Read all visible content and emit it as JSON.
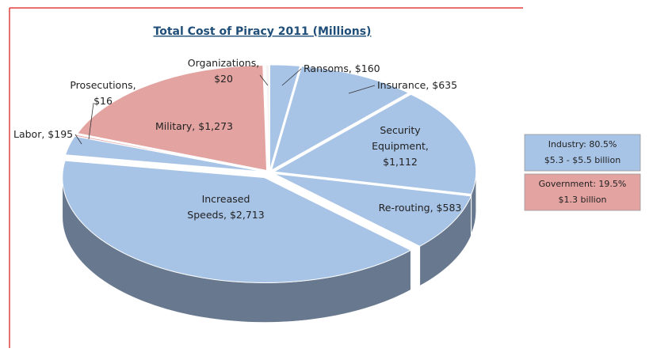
{
  "chart_data": {
    "type": "pie",
    "title": "Total Cost of Piracy 2011 (Millions)",
    "values": [
      160,
      635,
      1112,
      583,
      2713,
      195,
      16,
      1273,
      20
    ],
    "value_labels": [
      "Ransoms, $160",
      "Insurance, $635",
      "Security\nEquipment,\n$1,112",
      "Re-routing, $583",
      "Increased\nSpeeds, $2,713",
      "Labor, $195",
      "Prosecutions,\n$16",
      "Military, $1,273",
      "Organizations,\n$20"
    ],
    "colors": [
      "#a7c3e6",
      "#a7c3e6",
      "#a7c3e6",
      "#a7c3e6",
      "#a7c3e6",
      "#a7c3e6",
      "#e3a3a1",
      "#e3a3a1",
      "#f4f4f4"
    ],
    "legend": [
      {
        "text": "Industry: 80.5%\n$5.3 - $5.5 billion",
        "color": "#a7c3e6"
      },
      {
        "text": "Government: 19.5%\n$1.3 billion",
        "color": "#e3a3a1"
      }
    ]
  }
}
